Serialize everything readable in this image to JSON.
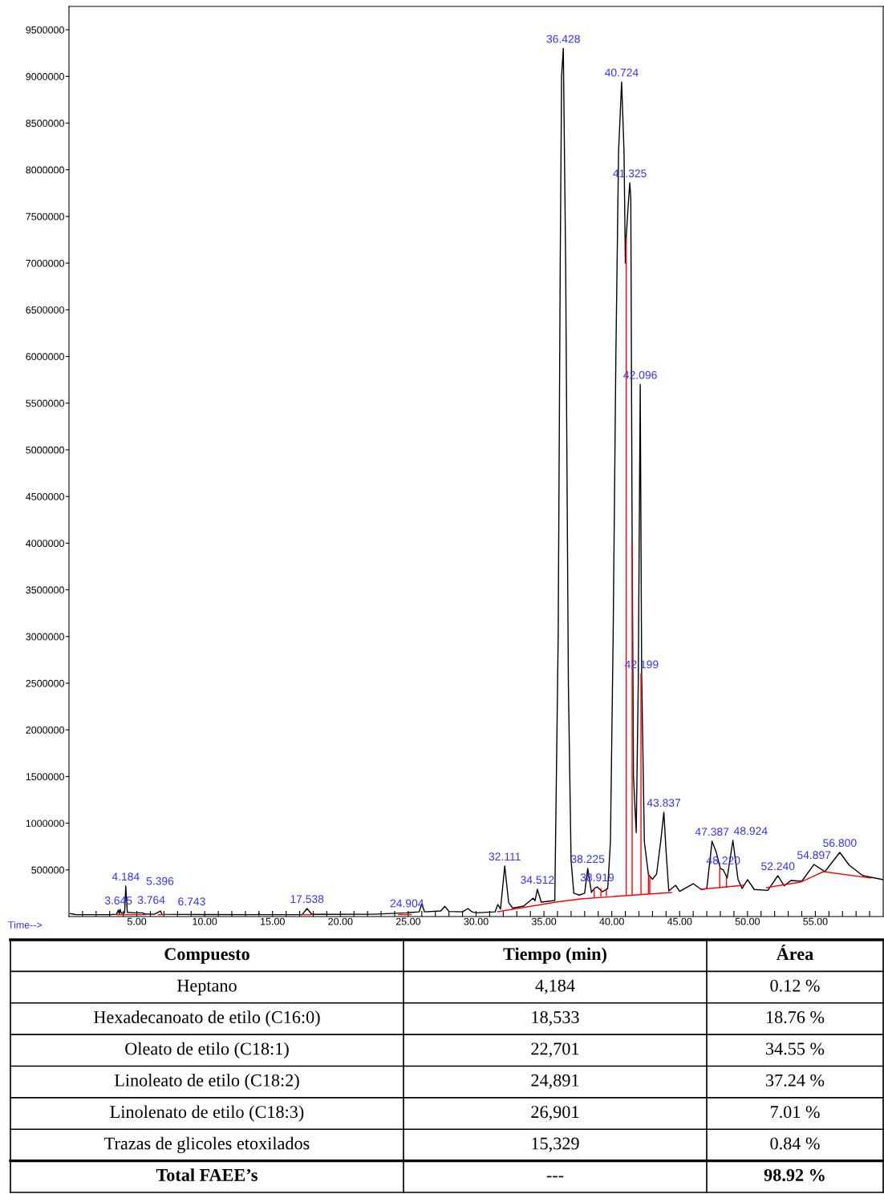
{
  "chart_data": [
    {
      "type": "line",
      "xlabel": "Time-->",
      "xlim": [
        0,
        60
      ],
      "ylim": [
        0,
        9750000
      ],
      "xticks": [
        {
          "value": 1,
          "label": null
        },
        {
          "value": 2,
          "label": null
        },
        {
          "value": 3,
          "label": null
        },
        {
          "value": 4,
          "label": null
        },
        {
          "value": 5,
          "label": "5.00"
        },
        {
          "value": 6,
          "label": null
        },
        {
          "value": 7,
          "label": null
        },
        {
          "value": 8,
          "label": null
        },
        {
          "value": 9,
          "label": null
        },
        {
          "value": 10,
          "label": "10.00"
        },
        {
          "value": 11,
          "label": null
        },
        {
          "value": 12,
          "label": null
        },
        {
          "value": 13,
          "label": null
        },
        {
          "value": 14,
          "label": null
        },
        {
          "value": 15,
          "label": "15.00"
        },
        {
          "value": 16,
          "label": null
        },
        {
          "value": 17,
          "label": null
        },
        {
          "value": 18,
          "label": null
        },
        {
          "value": 19,
          "label": null
        },
        {
          "value": 20,
          "label": "20.00"
        },
        {
          "value": 21,
          "label": null
        },
        {
          "value": 22,
          "label": null
        },
        {
          "value": 23,
          "label": null
        },
        {
          "value": 24,
          "label": null
        },
        {
          "value": 25,
          "label": "25.00"
        },
        {
          "value": 26,
          "label": null
        },
        {
          "value": 27,
          "label": null
        },
        {
          "value": 28,
          "label": null
        },
        {
          "value": 29,
          "label": null
        },
        {
          "value": 30,
          "label": "30.00"
        },
        {
          "value": 31,
          "label": null
        },
        {
          "value": 32,
          "label": null
        },
        {
          "value": 33,
          "label": null
        },
        {
          "value": 34,
          "label": null
        },
        {
          "value": 35,
          "label": "35.00"
        },
        {
          "value": 36,
          "label": null
        },
        {
          "value": 37,
          "label": null
        },
        {
          "value": 38,
          "label": null
        },
        {
          "value": 39,
          "label": null
        },
        {
          "value": 40,
          "label": "40.00"
        },
        {
          "value": 41,
          "label": null
        },
        {
          "value": 42,
          "label": null
        },
        {
          "value": 43,
          "label": null
        },
        {
          "value": 44,
          "label": null
        },
        {
          "value": 45,
          "label": "45.00"
        },
        {
          "value": 46,
          "label": null
        },
        {
          "value": 47,
          "label": null
        },
        {
          "value": 48,
          "label": null
        },
        {
          "value": 49,
          "label": null
        },
        {
          "value": 50,
          "label": "50.00"
        },
        {
          "value": 51,
          "label": null
        },
        {
          "value": 52,
          "label": null
        },
        {
          "value": 53,
          "label": null
        },
        {
          "value": 54,
          "label": null
        },
        {
          "value": 55,
          "label": "55.00"
        },
        {
          "value": 56,
          "label": null
        },
        {
          "value": 57,
          "label": null
        },
        {
          "value": 58,
          "label": null
        },
        {
          "value": 59,
          "label": null
        }
      ],
      "yticks": [
        500000,
        1000000,
        1500000,
        2000000,
        2500000,
        3000000,
        3500000,
        4000000,
        4500000,
        5000000,
        5500000,
        6000000,
        6500000,
        7000000,
        7500000,
        8000000,
        8500000,
        9000000,
        9500000
      ],
      "grid": false,
      "marker": "none",
      "line_style": "solid",
      "series": [
        {
          "color": "#000000",
          "x": [
            0.1,
            0.5,
            3.0,
            3.5,
            3.645,
            3.7,
            3.764,
            3.85,
            4.1,
            4.184,
            4.3,
            4.8,
            5.396,
            5.6,
            6.3,
            6.743,
            6.85,
            10.0,
            13.9,
            14.0,
            14.1,
            17.2,
            17.538,
            17.9,
            22.4,
            24.904,
            25.8,
            26.0,
            26.2,
            27.4,
            27.7,
            28.0,
            29.0,
            29.4,
            29.7,
            30.0,
            31.4,
            31.6,
            31.8,
            32.111,
            32.4,
            32.7,
            33.5,
            34.2,
            34.35,
            34.512,
            34.8,
            35.8,
            36.05,
            36.2,
            36.3,
            36.428,
            36.6,
            36.8,
            37.0,
            37.2,
            37.6,
            38.0,
            38.225,
            38.5,
            38.7,
            38.919,
            39.3,
            39.7,
            39.9,
            40.1,
            40.3,
            40.5,
            40.724,
            40.9,
            41.0,
            41.06,
            41.2,
            41.325,
            41.4,
            41.5,
            41.6,
            41.8,
            41.95,
            42.096,
            42.2,
            42.4,
            42.7,
            43.0,
            43.3,
            43.6,
            43.837,
            44.0,
            44.2,
            44.7,
            45.0,
            46.0,
            46.6,
            47.0,
            47.388,
            47.7,
            48.0,
            48.22,
            48.5,
            48.924,
            49.3,
            49.6,
            50.0,
            50.5,
            51.5,
            52.24,
            52.7,
            53.2,
            54.0,
            54.897,
            55.7,
            56.8,
            57.5,
            58.5,
            60.0
          ],
          "values": [
            30000,
            22000,
            20000,
            25000,
            70000,
            30000,
            77000,
            35000,
            40000,
            326000,
            45000,
            40000,
            40000,
            28000,
            25000,
            60000,
            25000,
            22000,
            20000,
            30000,
            20000,
            22000,
            86000,
            24000,
            25000,
            40000,
            50000,
            137000,
            50000,
            60000,
            110000,
            55000,
            50000,
            86000,
            50000,
            40000,
            50000,
            129000,
            80000,
            541000,
            150000,
            90000,
            112000,
            198000,
            170000,
            292000,
            155000,
            172000,
            3000000,
            7000000,
            9000000,
            9300000,
            7000000,
            2500000,
            600000,
            250000,
            230000,
            250000,
            515000,
            258000,
            300000,
            318000,
            266000,
            300000,
            800000,
            3000000,
            6000000,
            8200000,
            8940000,
            8200000,
            7000000,
            7270000,
            7600000,
            7860000,
            7700000,
            4000000,
            1500000,
            900000,
            2500000,
            5700000,
            2600000,
            800000,
            450000,
            400000,
            455000,
            800000,
            1117000,
            700000,
            275000,
            335000,
            270000,
            352000,
            290000,
            300000,
            807000,
            687000,
            515000,
            500000,
            412000,
            816000,
            400000,
            300000,
            395000,
            290000,
            280000,
            438000,
            330000,
            387000,
            378000,
            558000,
            481000,
            687000,
            550000,
            438000,
            395000
          ]
        },
        {
          "color": "#ff0000",
          "x": [
            3.5,
            5.6,
            5.65,
            6.6,
            7.0,
            7.05,
            17.2,
            17.9,
            17.95,
            24.3,
            25.2,
            25.25,
            31.6,
            35.9,
            37.7,
            44.4,
            44.45,
            46.6,
            49.7,
            49.75,
            51.4,
            53.9,
            55.6,
            59.1
          ],
          "values": [
            20000,
            20000,
            null,
            20000,
            20000,
            null,
            20000,
            20000,
            null,
            20000,
            20000,
            null,
            52000,
            155000,
            189000,
            258000,
            null,
            292000,
            335000,
            null,
            309000,
            369000,
            481000,
            412000
          ]
        },
        {
          "color": "#ff0000",
          "x": [
            38.7,
            38.7,
            38.75,
            39.2,
            39.2,
            39.25,
            39.6,
            39.6,
            39.65,
            41.06,
            41.06,
            41.1,
            41.5,
            41.5,
            41.55,
            42.15,
            42.15,
            42.2,
            42.7,
            42.7,
            42.75,
            42.8,
            42.8,
            42.85,
            47.95,
            47.95,
            48.0,
            48.45,
            48.45
          ],
          "values": [
            210000,
            300000,
            null,
            220000,
            300000,
            null,
            225000,
            300000,
            null,
            232000,
            7270000,
            null,
            236000,
            4000000,
            null,
            240000,
            2600000,
            null,
            248000,
            450000,
            null,
            249000,
            420000,
            null,
            310000,
            515000,
            null,
            316000,
            412000
          ]
        }
      ],
      "annotations": [
        {
          "text": "3.645",
          "x": 3.645,
          "y": 70000
        },
        {
          "text": "3.764",
          "x": 3.764,
          "y": 77000
        },
        {
          "text": "4.184",
          "x": 4.184,
          "y": 326000
        },
        {
          "text": "5.396",
          "x": 5.396,
          "y": 40000
        },
        {
          "text": "6.743",
          "x": 6.743,
          "y": 60000
        },
        {
          "text": "17.538",
          "x": 17.538,
          "y": 86000
        },
        {
          "text": "24.904",
          "x": 24.904,
          "y": 40000
        },
        {
          "text": "32.111",
          "x": 32.111,
          "y": 541000
        },
        {
          "text": "34.512",
          "x": 34.512,
          "y": 292000
        },
        {
          "text": "36.428",
          "x": 36.428,
          "y": 9300000
        },
        {
          "text": "38.225",
          "x": 38.225,
          "y": 515000
        },
        {
          "text": "38.919",
          "x": 38.919,
          "y": 318000
        },
        {
          "text": "40.724",
          "x": 40.724,
          "y": 8940000
        },
        {
          "text": "41.325",
          "x": 41.325,
          "y": 7860000
        },
        {
          "text": "42.096",
          "x": 42.096,
          "y": 5700000
        },
        {
          "text": "42.199",
          "x": 42.199,
          "y": 2600000
        },
        {
          "text": "43.837",
          "x": 43.837,
          "y": 1117000
        },
        {
          "text": "47.387",
          "x": 47.388,
          "y": 807000
        },
        {
          "text": "48.220",
          "x": 48.22,
          "y": 500000
        },
        {
          "text": "48.924",
          "x": 48.924,
          "y": 816000
        },
        {
          "text": "52.240",
          "x": 52.24,
          "y": 438000
        },
        {
          "text": "54.897",
          "x": 54.897,
          "y": 558000
        },
        {
          "text": "56.800",
          "x": 56.8,
          "y": 687000
        }
      ]
    },
    {
      "type": "other",
      "annotations": [
        "Compuesto",
        "Tiempo (min)",
        "Área",
        "Heptano",
        "4,184",
        "0.12 %",
        "Hexadecanoato de etilo (C16:0)",
        "18,533",
        "18.76 %",
        "Oleato de etilo (C18:1)",
        "22,701",
        "34.55 %",
        "Linoleato de etilo (C18:2)",
        "24,891",
        "37.24 %",
        "Linolenato de etilo (C18:3)",
        "26,901",
        "7.01 %",
        "Trazas de glicoles etoxilados",
        "15,329",
        "0.84 %",
        "Total FAEE’s",
        "---",
        "98.92 %"
      ]
    }
  ]
}
